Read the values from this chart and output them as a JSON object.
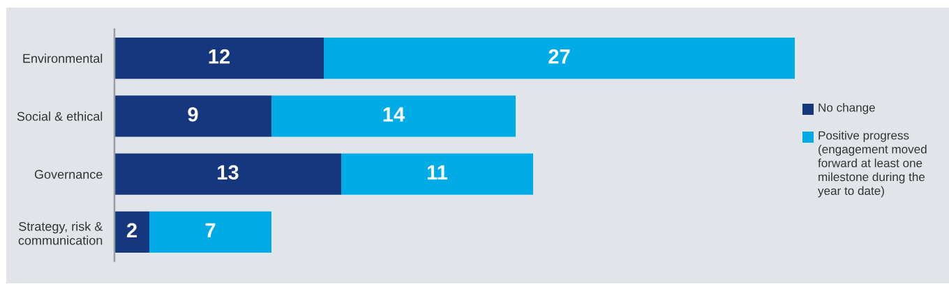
{
  "chart_data": {
    "type": "bar",
    "orientation": "horizontal",
    "stacked": true,
    "categories": [
      "Environmental",
      "Social & ethical",
      "Governance",
      "Strategy, risk &\ncommunication"
    ],
    "series": [
      {
        "name": "No change",
        "color": "#14377d",
        "values": [
          12,
          9,
          13,
          2
        ]
      },
      {
        "name": "Positive progress (engagement moved forward at least one milestone during the year to date)",
        "color": "#00abe6",
        "values": [
          27,
          14,
          11,
          7
        ]
      }
    ],
    "data_labels": true,
    "legend": "right",
    "tick_labels": "y"
  }
}
